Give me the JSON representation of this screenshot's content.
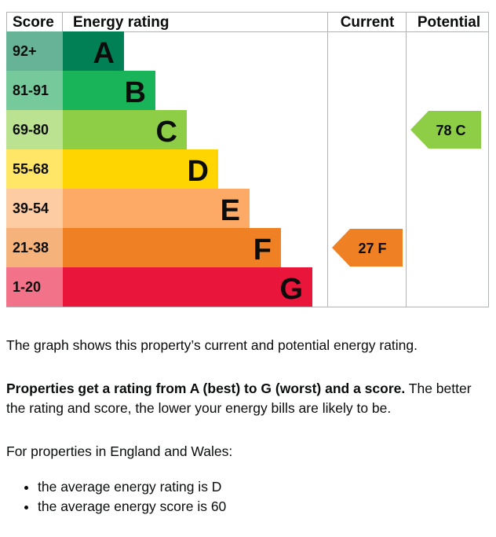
{
  "chart_data": {
    "type": "bar",
    "headers": {
      "score": "Score",
      "rating": "Energy rating",
      "current": "Current",
      "potential": "Potential"
    },
    "bands": [
      {
        "score_range": "92+",
        "letter": "A",
        "color": "#008054",
        "score_bg": "#66B398"
      },
      {
        "score_range": "81-91",
        "letter": "B",
        "color": "#19b459",
        "score_bg": "#75C99B"
      },
      {
        "score_range": "69-80",
        "letter": "C",
        "color": "#8dce46",
        "score_bg": "#BBE290"
      },
      {
        "score_range": "55-68",
        "letter": "D",
        "color": "#ffd500",
        "score_bg": "#FFE666"
      },
      {
        "score_range": "39-54",
        "letter": "E",
        "color": "#fcaa65",
        "score_bg": "#FDCCA3"
      },
      {
        "score_range": "21-38",
        "letter": "F",
        "color": "#ef8023",
        "score_bg": "#F5B37B"
      },
      {
        "score_range": "1-20",
        "letter": "G",
        "color": "#e9153b",
        "score_bg": "#F27389"
      }
    ],
    "current": {
      "score": 27,
      "letter": "F",
      "band_index": 5,
      "color": "#ef8023",
      "label": "27  F"
    },
    "potential": {
      "score": 78,
      "letter": "C",
      "band_index": 2,
      "color": "#8dce46",
      "label": "78  C"
    }
  },
  "text": {
    "intro": "The graph shows this property’s current and potential energy rating.",
    "rating_bold": "Properties get a rating from A (best) to G (worst) and a score.",
    "rating_rest": " The better the rating and score, the lower your energy bills are likely to be.",
    "region": "For properties in England and Wales:",
    "bullets": [
      "the average energy rating is D",
      "the average energy score is 60"
    ]
  }
}
